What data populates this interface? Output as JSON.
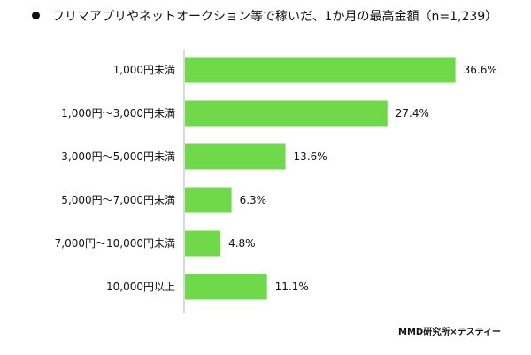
{
  "chart_data": {
    "type": "bar",
    "orientation": "horizontal",
    "title": "フリマアプリやネットオークション等で稼いだ、1か月の最高金額（n=1,239）",
    "categories": [
      "1,000円未満",
      "1,000円～3,000円未満",
      "3,000円～5,000円未満",
      "5,000円～7,000円未満",
      "7,000円～10,000円未満",
      "10,000円以上"
    ],
    "values": [
      36.6,
      27.4,
      13.6,
      6.3,
      4.8,
      11.1
    ],
    "value_labels": [
      "36.6%",
      "27.4%",
      "13.6%",
      "6.3%",
      "4.8%",
      "11.1%"
    ],
    "unit": "%",
    "xlim": [
      0,
      40
    ],
    "grid": false,
    "bar_color": "#70d94a",
    "axis_color": "#b3b3b3"
  },
  "source": "MMD研究所×テスティー"
}
